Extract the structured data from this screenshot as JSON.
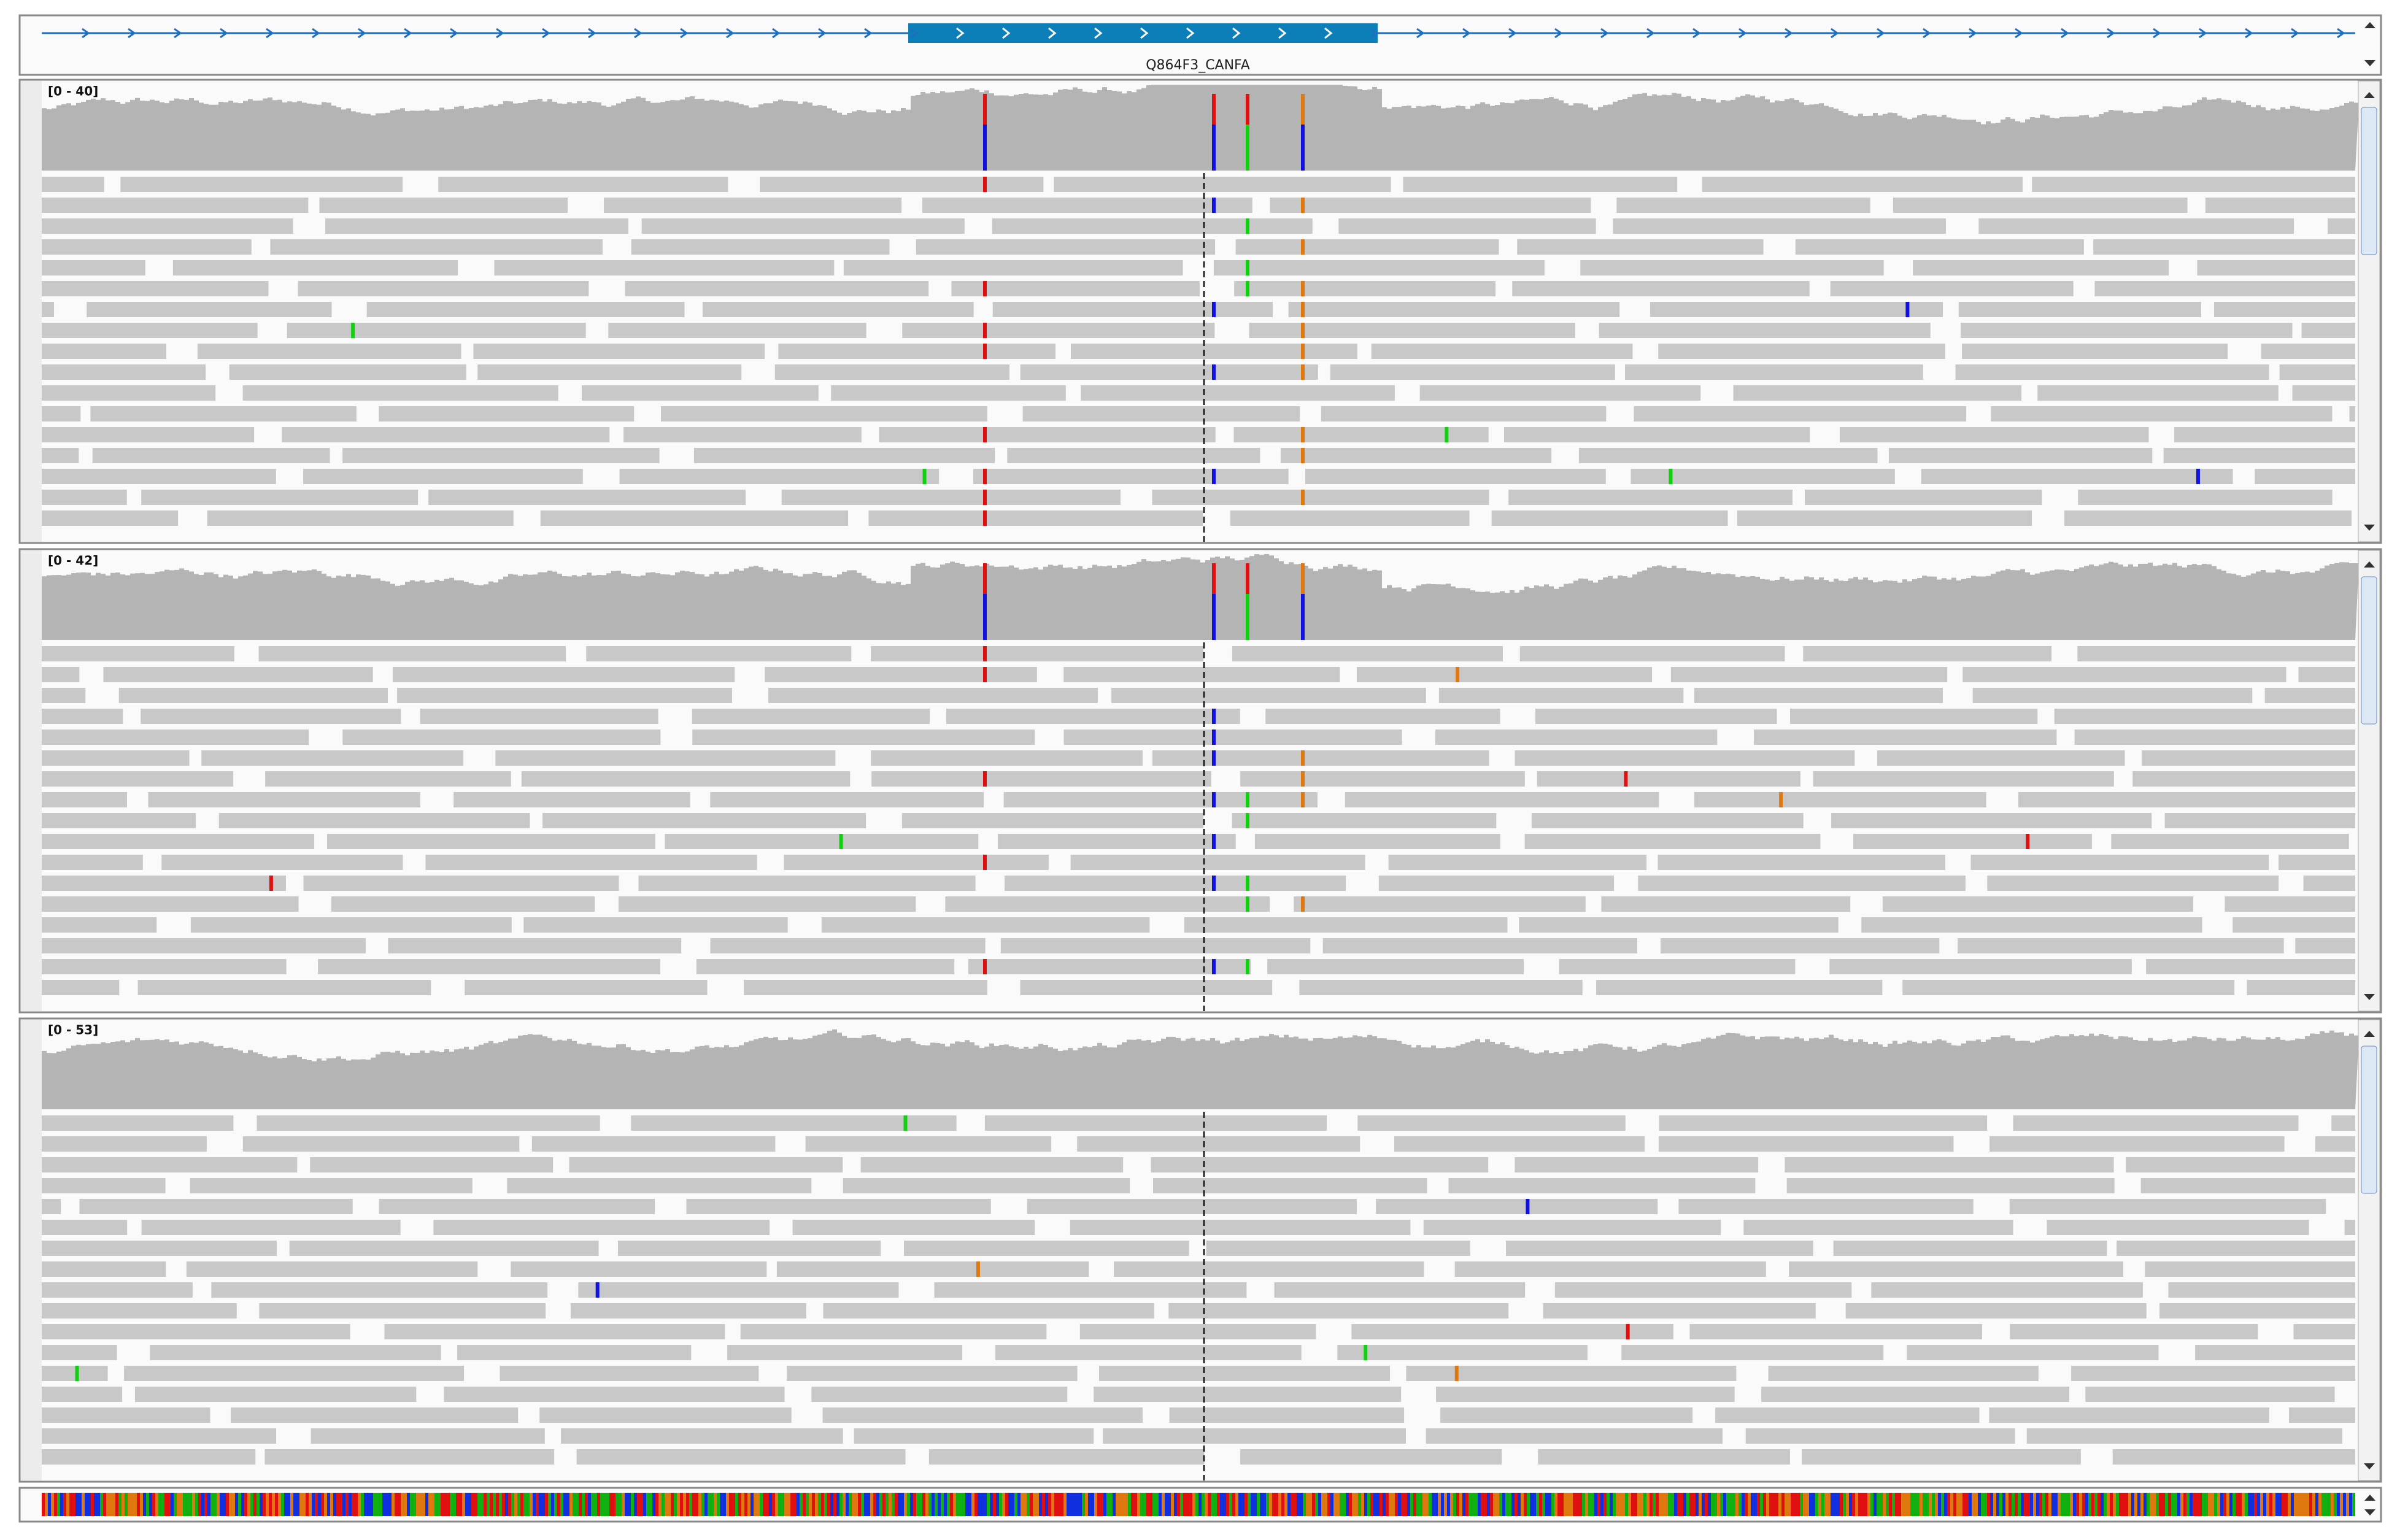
{
  "gene": {
    "label": "Q864F3_CANFA"
  },
  "tracks": [
    {
      "range": "[0 - 40]"
    },
    {
      "range": "[0 - 42]"
    },
    {
      "range": "[0 - 53]"
    }
  ]
}
